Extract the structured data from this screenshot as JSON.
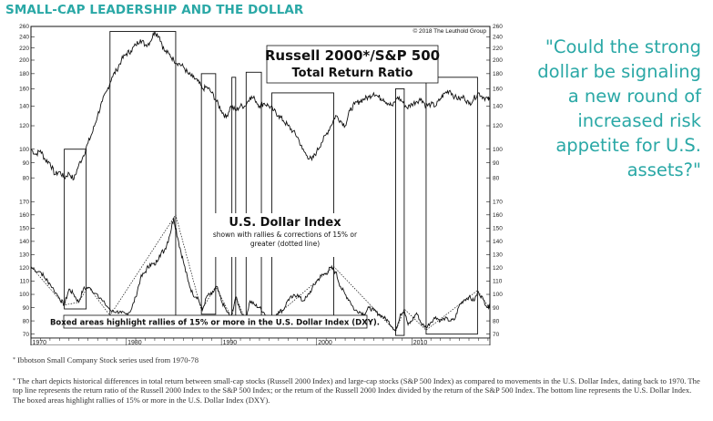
{
  "header": {
    "title": "SMALL-CAP LEADERSHIP AND THE DOLLAR"
  },
  "quote": {
    "text": "\"Could the strong dollar be signaling a new round of increased risk appetite for U.S. assets?\""
  },
  "footnotes": {
    "note1_mark": "*",
    "note1": "Ibbotson Small Company Stock series used from 1970-78",
    "note2_mark": "*",
    "note2": "The chart depicts historical differences in total return between small-cap stocks (Russell 2000 Index) and large-cap stocks (S&P 500 Index) as compared to movements in the U.S. Dollar Index, dating back to 1970. The top line represents the return ratio of the Russell 2000 Index to the S&P 500 Index; or the return of the Russell 2000 Index divided by the return of the S&P 500 Index. The bottom line represents the U.S. Dollar Index. The boxed areas highlight rallies of 15% or more in the U.S. Dollar Index (DXY)."
  },
  "colors": {
    "accent": "#2aa8a6",
    "line": "#111111"
  },
  "chart_data": {
    "type": "line",
    "copyright": "© 2018 The Leuthold Group",
    "x_tick_labels": [
      "1970",
      "1980",
      "1990",
      "2000",
      "2010"
    ],
    "x_range": [
      1970,
      2018.2
    ],
    "top_panel": {
      "title_line1": "Russell 2000*/S&P 500",
      "title_line2": "Total Return Ratio",
      "y_ticks": [
        80,
        90,
        100,
        120,
        140,
        160,
        180,
        200,
        220,
        240,
        260
      ],
      "ylim": [
        70,
        260
      ],
      "scale": "log",
      "values": [
        [
          1970.0,
          100
        ],
        [
          1970.5,
          96
        ],
        [
          1971.0,
          99
        ],
        [
          1971.5,
          92
        ],
        [
          1972.0,
          90
        ],
        [
          1972.5,
          82
        ],
        [
          1973.0,
          84
        ],
        [
          1973.5,
          80
        ],
        [
          1974.0,
          83
        ],
        [
          1974.5,
          79
        ],
        [
          1975.0,
          88
        ],
        [
          1975.5,
          95
        ],
        [
          1976.0,
          105
        ],
        [
          1976.5,
          115
        ],
        [
          1977.0,
          130
        ],
        [
          1977.5,
          145
        ],
        [
          1978.0,
          158
        ],
        [
          1978.5,
          175
        ],
        [
          1979.0,
          185
        ],
        [
          1979.5,
          200
        ],
        [
          1980.0,
          210
        ],
        [
          1980.5,
          215
        ],
        [
          1981.0,
          225
        ],
        [
          1981.5,
          235
        ],
        [
          1982.0,
          225
        ],
        [
          1982.5,
          230
        ],
        [
          1983.0,
          250
        ],
        [
          1983.5,
          240
        ],
        [
          1984.0,
          215
        ],
        [
          1984.5,
          210
        ],
        [
          1985.0,
          200
        ],
        [
          1985.5,
          195
        ],
        [
          1986.0,
          190
        ],
        [
          1986.5,
          180
        ],
        [
          1987.0,
          175
        ],
        [
          1987.5,
          170
        ],
        [
          1988.0,
          160
        ],
        [
          1988.5,
          162
        ],
        [
          1989.0,
          155
        ],
        [
          1989.5,
          145
        ],
        [
          1990.0,
          135
        ],
        [
          1990.5,
          128
        ],
        [
          1991.0,
          140
        ],
        [
          1991.5,
          135
        ],
        [
          1992.0,
          140
        ],
        [
          1992.5,
          140
        ],
        [
          1993.0,
          150
        ],
        [
          1993.5,
          148
        ],
        [
          1994.0,
          140
        ],
        [
          1994.5,
          143
        ],
        [
          1995.0,
          140
        ],
        [
          1995.5,
          135
        ],
        [
          1996.0,
          130
        ],
        [
          1996.5,
          125
        ],
        [
          1997.0,
          120
        ],
        [
          1997.5,
          115
        ],
        [
          1998.0,
          110
        ],
        [
          1998.5,
          100
        ],
        [
          1999.0,
          95
        ],
        [
          1999.5,
          92
        ],
        [
          2000.0,
          98
        ],
        [
          2000.5,
          105
        ],
        [
          2001.0,
          112
        ],
        [
          2001.5,
          120
        ],
        [
          2002.0,
          130
        ],
        [
          2002.5,
          125
        ],
        [
          2003.0,
          120
        ],
        [
          2003.5,
          135
        ],
        [
          2004.0,
          142
        ],
        [
          2004.5,
          145
        ],
        [
          2005.0,
          148
        ],
        [
          2005.5,
          150
        ],
        [
          2006.0,
          155
        ],
        [
          2006.5,
          150
        ],
        [
          2007.0,
          148
        ],
        [
          2007.5,
          143
        ],
        [
          2008.0,
          140
        ],
        [
          2008.5,
          150
        ],
        [
          2009.0,
          145
        ],
        [
          2009.5,
          138
        ],
        [
          2010.0,
          142
        ],
        [
          2010.5,
          145
        ],
        [
          2011.0,
          148
        ],
        [
          2011.5,
          140
        ],
        [
          2012.0,
          142
        ],
        [
          2012.5,
          140
        ],
        [
          2013.0,
          148
        ],
        [
          2013.5,
          155
        ],
        [
          2014.0,
          158
        ],
        [
          2014.5,
          150
        ],
        [
          2015.0,
          148
        ],
        [
          2015.5,
          150
        ],
        [
          2016.0,
          142
        ],
        [
          2016.5,
          148
        ],
        [
          2017.0,
          155
        ],
        [
          2017.5,
          150
        ],
        [
          2018.0,
          148
        ],
        [
          2018.2,
          146
        ]
      ]
    },
    "bottom_panel": {
      "title": "U.S. Dollar Index",
      "subtitle_line1": "shown with rallies & corrections of 15% or",
      "subtitle_line2": "greater (dotted line)",
      "note": "Boxed areas highlight rallies of 15% or more in the U.S. Dollar Index (DXY).",
      "y_ticks": [
        70,
        80,
        90,
        100,
        110,
        120,
        130,
        140,
        150,
        160,
        170
      ],
      "ylim": [
        67,
        175
      ],
      "values": [
        [
          1970.0,
          120
        ],
        [
          1971.0,
          117
        ],
        [
          1971.5,
          112
        ],
        [
          1972.0,
          108
        ],
        [
          1973.0,
          97
        ],
        [
          1973.5,
          92
        ],
        [
          1974.0,
          104
        ],
        [
          1974.5,
          100
        ],
        [
          1975.0,
          94
        ],
        [
          1975.5,
          104
        ],
        [
          1976.0,
          105
        ],
        [
          1977.0,
          100
        ],
        [
          1977.5,
          95
        ],
        [
          1978.5,
          87
        ],
        [
          1979.0,
          87
        ],
        [
          1979.5,
          86
        ],
        [
          1980.0,
          85
        ],
        [
          1980.5,
          88
        ],
        [
          1981.0,
          98
        ],
        [
          1981.5,
          112
        ],
        [
          1982.0,
          117
        ],
        [
          1982.5,
          123
        ],
        [
          1983.0,
          122
        ],
        [
          1983.5,
          130
        ],
        [
          1984.0,
          133
        ],
        [
          1984.5,
          143
        ],
        [
          1985.0,
          158
        ],
        [
          1985.5,
          140
        ],
        [
          1986.0,
          125
        ],
        [
          1986.5,
          110
        ],
        [
          1987.0,
          100
        ],
        [
          1987.5,
          98
        ],
        [
          1988.0,
          88
        ],
        [
          1988.5,
          99
        ],
        [
          1989.0,
          100
        ],
        [
          1989.5,
          106
        ],
        [
          1990.0,
          95
        ],
        [
          1990.5,
          88
        ],
        [
          1991.0,
          82
        ],
        [
          1991.5,
          98
        ],
        [
          1992.0,
          88
        ],
        [
          1992.5,
          80
        ],
        [
          1993.0,
          95
        ],
        [
          1993.5,
          92
        ],
        [
          1994.0,
          90
        ],
        [
          1994.5,
          86
        ],
        [
          1995.0,
          81
        ],
        [
          1995.5,
          83
        ],
        [
          1996.0,
          87
        ],
        [
          1996.5,
          88
        ],
        [
          1997.0,
          96
        ],
        [
          1997.5,
          98
        ],
        [
          1998.0,
          100
        ],
        [
          1998.5,
          95
        ],
        [
          1999.0,
          98
        ],
        [
          1999.5,
          104
        ],
        [
          2000.0,
          110
        ],
        [
          2000.5,
          114
        ],
        [
          2001.0,
          116
        ],
        [
          2001.5,
          120
        ],
        [
          2002.0,
          117
        ],
        [
          2002.5,
          106
        ],
        [
          2003.0,
          100
        ],
        [
          2003.5,
          95
        ],
        [
          2004.0,
          88
        ],
        [
          2004.5,
          87
        ],
        [
          2005.0,
          85
        ],
        [
          2005.5,
          90
        ],
        [
          2006.0,
          88
        ],
        [
          2006.5,
          85
        ],
        [
          2007.0,
          83
        ],
        [
          2007.5,
          80
        ],
        [
          2008.0,
          75
        ],
        [
          2008.3,
          72
        ],
        [
          2008.8,
          85
        ],
        [
          2009.2,
          88
        ],
        [
          2009.6,
          77
        ],
        [
          2010.0,
          80
        ],
        [
          2010.5,
          86
        ],
        [
          2011.0,
          78
        ],
        [
          2011.5,
          75
        ],
        [
          2012.0,
          79
        ],
        [
          2012.5,
          83
        ],
        [
          2013.0,
          80
        ],
        [
          2013.5,
          82
        ],
        [
          2014.0,
          80
        ],
        [
          2014.5,
          81
        ],
        [
          2015.0,
          92
        ],
        [
          2015.5,
          96
        ],
        [
          2016.0,
          98
        ],
        [
          2016.5,
          95
        ],
        [
          2017.0,
          102
        ],
        [
          2017.5,
          96
        ],
        [
          2018.0,
          90
        ],
        [
          2018.2,
          93
        ]
      ],
      "swing_line": [
        [
          1970.0,
          121
        ],
        [
          1973.5,
          92
        ],
        [
          1975.0,
          94
        ],
        [
          1976.0,
          106
        ],
        [
          1978.3,
          84
        ],
        [
          1985.2,
          160
        ],
        [
          1987.9,
          88
        ],
        [
          1989.4,
          106
        ],
        [
          1991.1,
          82
        ],
        [
          1991.5,
          98
        ],
        [
          1992.6,
          80
        ],
        [
          1995.3,
          81
        ],
        [
          2001.8,
          121
        ],
        [
          2008.3,
          72
        ],
        [
          2009.2,
          89
        ],
        [
          2011.5,
          73
        ],
        [
          2016.9,
          103
        ],
        [
          2018.2,
          89
        ]
      ]
    },
    "rally_boxes": [
      {
        "start": 1973.5,
        "end": 1975.8,
        "low": 92,
        "high": 106
      },
      {
        "start": 1978.3,
        "end": 1985.2,
        "low": 84,
        "high": 160
      },
      {
        "start": 1987.9,
        "end": 1989.4,
        "low": 88,
        "high": 106
      },
      {
        "start": 1991.1,
        "end": 1991.5,
        "low": 82,
        "high": 98
      },
      {
        "start": 1992.6,
        "end": 1994.2,
        "low": 80,
        "high": 97
      },
      {
        "start": 1995.3,
        "end": 2001.8,
        "low": 81,
        "high": 121
      },
      {
        "start": 2008.3,
        "end": 2009.2,
        "low": 72,
        "high": 89
      },
      {
        "start": 2011.5,
        "end": 2016.9,
        "low": 73,
        "high": 103
      }
    ],
    "rally_box_top_panel_highs": [
      100,
      250,
      180,
      175,
      182,
      155,
      160,
      175
    ]
  }
}
